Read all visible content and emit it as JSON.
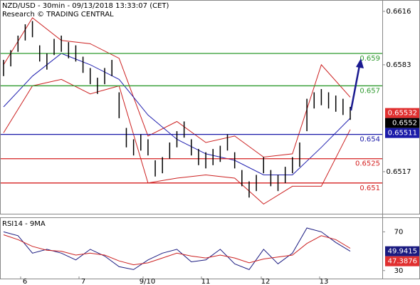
{
  "chart_data": [
    {
      "type": "ohlc",
      "title": "NZD/USD - 30min - 09/13/2018 13:33:07 (CET)",
      "subtitle": "Research © TRADING CENTRAL",
      "highs": [
        0.6586,
        0.6592,
        0.6601,
        0.6608,
        0.661,
        0.6595,
        0.659,
        0.6599,
        0.6601,
        0.6597,
        0.6595,
        0.6588,
        0.6581,
        0.6575,
        0.6581,
        0.6586,
        0.6566,
        0.6544,
        0.6537,
        0.654,
        0.6537,
        0.6524,
        0.6526,
        0.6535,
        0.6542,
        0.6548,
        0.6537,
        0.6531,
        0.6529,
        0.6531,
        0.6533,
        0.654,
        0.6529,
        0.6518,
        0.6511,
        0.6515,
        0.6526,
        0.6518,
        0.6515,
        0.652,
        0.6526,
        0.6535,
        0.6562,
        0.6566,
        0.6568,
        0.6566,
        0.6564,
        0.6562,
        0.6557
      ],
      "lows": [
        0.6576,
        0.6582,
        0.6591,
        0.6598,
        0.66,
        0.6585,
        0.658,
        0.6589,
        0.6591,
        0.6587,
        0.6585,
        0.6578,
        0.6571,
        0.6565,
        0.6571,
        0.6576,
        0.655,
        0.6532,
        0.6527,
        0.653,
        0.6527,
        0.6514,
        0.6516,
        0.6525,
        0.6532,
        0.6538,
        0.6527,
        0.6521,
        0.6519,
        0.6521,
        0.6523,
        0.653,
        0.6519,
        0.6508,
        0.6501,
        0.6505,
        0.6516,
        0.6508,
        0.6505,
        0.651,
        0.6516,
        0.652,
        0.6542,
        0.6556,
        0.6558,
        0.6556,
        0.6554,
        0.6552,
        0.6549
      ],
      "color": "#000000",
      "series": [
        {
          "color": "#cc2020",
          "values": [
            0.6583,
            0.6612,
            0.6598,
            0.6596,
            0.6587,
            0.6539,
            0.6548,
            0.6535,
            0.6539,
            0.6526,
            0.6528,
            0.6583,
            0.6563
          ]
        },
        {
          "color": "#cc2020",
          "values": [
            0.6541,
            0.657,
            0.6574,
            0.6565,
            0.657,
            0.651,
            0.6513,
            0.6515,
            0.6513,
            0.6497,
            0.6508,
            0.6508,
            0.6543
          ]
        },
        {
          "color": "#2020b0",
          "values": [
            0.6557,
            0.6576,
            0.659,
            0.6583,
            0.6574,
            0.6552,
            0.6537,
            0.6528,
            0.6524,
            0.6515,
            0.6515,
            0.6532,
            0.655
          ]
        }
      ],
      "levels": [
        {
          "value": 0.659,
          "color": "#2e9a2e"
        },
        {
          "value": 0.657,
          "color": "#2e9a2e"
        },
        {
          "value": 0.654,
          "color": "#1a1aa8"
        },
        {
          "value": 0.6525,
          "color": "#d42020"
        },
        {
          "value": 0.651,
          "color": "#d42020"
        }
      ],
      "price_labels": [
        {
          "value": 0.65532,
          "color": "#e03030"
        },
        {
          "value": 0.6552,
          "color": "#000000"
        },
        {
          "value": 0.65511,
          "color": "#1a1aa8"
        }
      ],
      "ylim": [
        0.6491,
        0.6623
      ],
      "yticks": [
        0.6616,
        0.6583,
        0.6517
      ],
      "x_labels": [
        "6",
        "7",
        "9/10",
        "11",
        "12",
        "13"
      ]
    },
    {
      "type": "line",
      "title": "RSI14 - 9MA",
      "series": [
        {
          "color": "#1a1a80",
          "values": [
            70,
            66,
            48,
            52,
            48,
            41,
            52,
            45,
            34,
            31,
            41,
            48,
            52,
            39,
            41,
            52,
            37,
            31,
            52,
            37,
            48,
            74,
            70,
            59,
            50
          ]
        },
        {
          "color": "#cc2020",
          "values": [
            67,
            62,
            55,
            51,
            50,
            46,
            48,
            46,
            40,
            36,
            38,
            43,
            48,
            45,
            43,
            46,
            43,
            38,
            42,
            44,
            46,
            58,
            66,
            62,
            53
          ]
        }
      ],
      "value_labels": [
        {
          "value": 49.9415,
          "color": "#1a1a80"
        },
        {
          "value": 47.3876,
          "color": "#e03030"
        }
      ],
      "ylim": [
        21,
        85
      ],
      "yticks": [
        70,
        30
      ]
    }
  ]
}
